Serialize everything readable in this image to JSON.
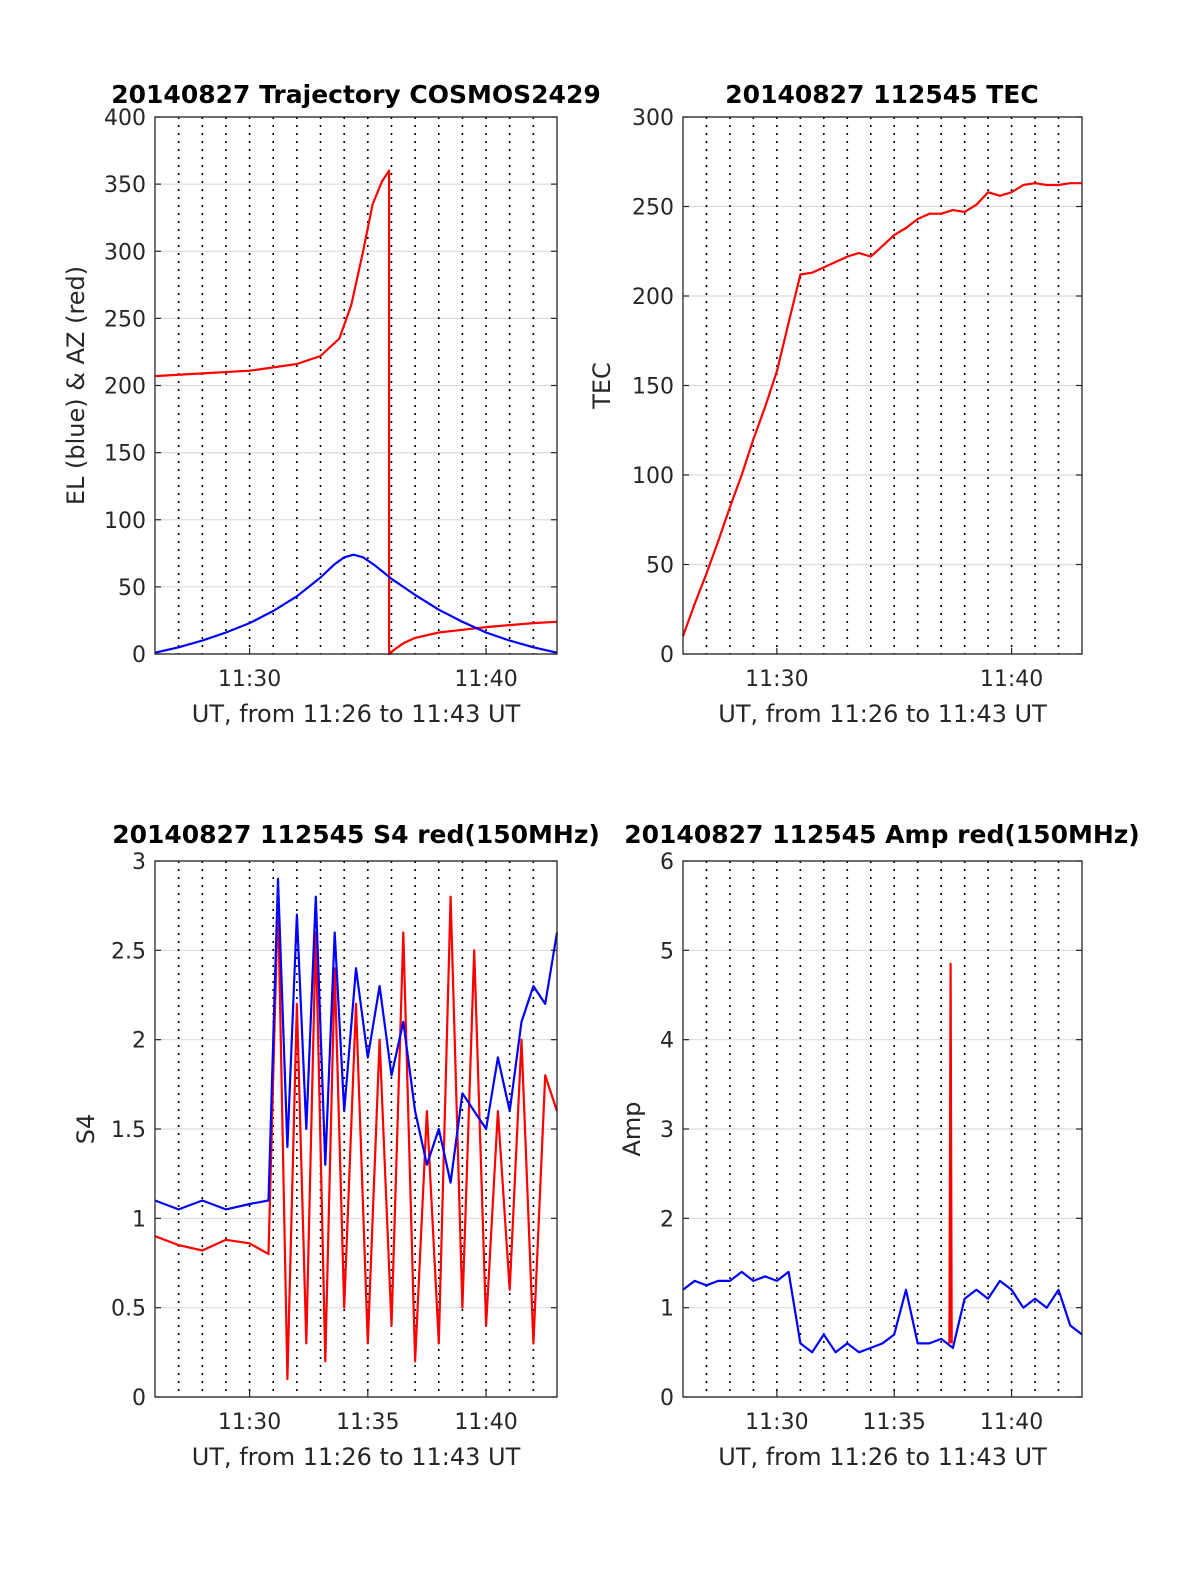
{
  "figure": {
    "colors": {
      "red": "#ff0000",
      "blue": "#0000ff",
      "axis": "#262626",
      "grid": "#dcdcdc",
      "vgrid": "#000000"
    }
  },
  "chart_data": [
    {
      "id": "trajectory",
      "type": "line",
      "title": "20140827 Trajectory COSMOS2429",
      "xlabel": "UT, from 11:26 to 11:43 UT",
      "ylabel": "EL (blue) & AZ (red)",
      "xlim_minutes": [
        686,
        703
      ],
      "x_ticks": [
        {
          "value": 690,
          "label": "11:30"
        },
        {
          "value": 700,
          "label": "11:40"
        }
      ],
      "ylim": [
        0,
        400
      ],
      "y_ticks": [
        {
          "value": 0,
          "label": "0"
        },
        {
          "value": 50,
          "label": "50"
        },
        {
          "value": 100,
          "label": "100"
        },
        {
          "value": 150,
          "label": "150"
        },
        {
          "value": 200,
          "label": "200"
        },
        {
          "value": 250,
          "label": "250"
        },
        {
          "value": 300,
          "label": "300"
        },
        {
          "value": 350,
          "label": "350"
        },
        {
          "value": 400,
          "label": "400"
        }
      ],
      "grid": true,
      "series": [
        {
          "color": "#ff0000",
          "x": [
            686,
            688,
            690,
            692,
            693,
            693.8,
            694.3,
            694.8,
            695.2,
            695.6,
            695.9,
            695.9,
            696.1,
            696.5,
            697,
            698,
            699,
            700,
            701,
            702,
            703
          ],
          "y": [
            207,
            209,
            211,
            216,
            222,
            235,
            260,
            300,
            335,
            352,
            360,
            0,
            3,
            8,
            12,
            16,
            18,
            20,
            21.5,
            23,
            24
          ]
        },
        {
          "color": "#0000ff",
          "x": [
            686,
            687,
            688,
            689,
            690,
            691,
            692,
            693,
            693.6,
            694,
            694.4,
            694.8,
            695.3,
            696,
            697,
            698,
            699,
            700,
            701,
            702,
            703
          ],
          "y": [
            1,
            5,
            10,
            16,
            23,
            32,
            43,
            57,
            67,
            72,
            74,
            72,
            66,
            56,
            44,
            33,
            24,
            16,
            10,
            5,
            1
          ]
        }
      ]
    },
    {
      "id": "tec",
      "type": "line",
      "title": "20140827 112545 TEC",
      "xlabel": "UT, from 11:26 to 11:43 UT",
      "ylabel": "TEC",
      "xlim_minutes": [
        686,
        703
      ],
      "x_ticks": [
        {
          "value": 690,
          "label": "11:30"
        },
        {
          "value": 700,
          "label": "11:40"
        }
      ],
      "ylim": [
        0,
        300
      ],
      "y_ticks": [
        {
          "value": 0,
          "label": "0"
        },
        {
          "value": 50,
          "label": "50"
        },
        {
          "value": 100,
          "label": "100"
        },
        {
          "value": 150,
          "label": "150"
        },
        {
          "value": 200,
          "label": "200"
        },
        {
          "value": 250,
          "label": "250"
        },
        {
          "value": 300,
          "label": "300"
        }
      ],
      "grid": true,
      "series": [
        {
          "color": "#ff0000",
          "x": [
            686,
            686.5,
            687,
            687.5,
            688,
            688.5,
            689,
            689.5,
            690,
            690.5,
            691,
            691.5,
            692,
            692.5,
            693,
            693.5,
            694,
            694.5,
            695,
            695.5,
            696,
            696.5,
            697,
            697.5,
            698,
            698.5,
            699,
            699.5,
            700,
            700.5,
            701,
            701.5,
            702,
            702.5,
            703
          ],
          "y": [
            10,
            28,
            45,
            63,
            82,
            100,
            120,
            138,
            158,
            185,
            212,
            213,
            216,
            219,
            222,
            224,
            222,
            228,
            234,
            238,
            243,
            246,
            246,
            248,
            247,
            251,
            258,
            256,
            258,
            262,
            263,
            262,
            262,
            263,
            263
          ]
        }
      ]
    },
    {
      "id": "s4",
      "type": "line",
      "title": "20140827 112545 S4 red(150MHz)",
      "xlabel": "UT, from 11:26 to 11:43 UT",
      "ylabel": "S4",
      "xlim_minutes": [
        686,
        703
      ],
      "x_ticks": [
        {
          "value": 690,
          "label": "11:30"
        },
        {
          "value": 695,
          "label": "11:35"
        },
        {
          "value": 700,
          "label": "11:40"
        }
      ],
      "ylim": [
        0,
        3
      ],
      "y_ticks": [
        {
          "value": 0,
          "label": "0"
        },
        {
          "value": 0.5,
          "label": "0.5"
        },
        {
          "value": 1,
          "label": "1"
        },
        {
          "value": 1.5,
          "label": "1.5"
        },
        {
          "value": 2,
          "label": "2"
        },
        {
          "value": 2.5,
          "label": "2.5"
        },
        {
          "value": 3,
          "label": "3"
        }
      ],
      "grid": true,
      "series": [
        {
          "color": "#ff0000",
          "x": [
            686,
            687,
            688,
            689,
            690,
            690.8,
            691.2,
            691.6,
            692,
            692.4,
            692.8,
            693.2,
            693.6,
            694,
            694.5,
            695,
            695.5,
            696,
            696.5,
            697,
            697.5,
            698,
            698.5,
            699,
            699.5,
            700,
            700.5,
            701,
            701.5,
            702,
            702.5,
            703
          ],
          "y": [
            0.9,
            0.85,
            0.82,
            0.88,
            0.86,
            0.8,
            2.8,
            0.1,
            2.2,
            0.3,
            2.6,
            0.2,
            2.4,
            0.5,
            2.2,
            0.3,
            2.0,
            0.4,
            2.6,
            0.2,
            1.6,
            0.3,
            2.8,
            0.5,
            2.5,
            0.4,
            1.6,
            0.6,
            2.0,
            0.3,
            1.8,
            1.6
          ]
        },
        {
          "color": "#0000ff",
          "x": [
            686,
            687,
            688,
            689,
            690,
            690.8,
            691.2,
            691.6,
            692,
            692.4,
            692.8,
            693.2,
            693.6,
            694,
            694.5,
            695,
            695.5,
            696,
            696.5,
            697,
            697.5,
            698,
            698.5,
            699,
            699.5,
            700,
            700.5,
            701,
            701.5,
            702,
            702.5,
            703
          ],
          "y": [
            1.1,
            1.05,
            1.1,
            1.05,
            1.08,
            1.1,
            2.9,
            1.4,
            2.7,
            1.5,
            2.8,
            1.3,
            2.6,
            1.6,
            2.4,
            1.9,
            2.3,
            1.8,
            2.1,
            1.6,
            1.3,
            1.5,
            1.2,
            1.7,
            1.6,
            1.5,
            1.9,
            1.6,
            2.1,
            2.3,
            2.2,
            2.6
          ]
        }
      ]
    },
    {
      "id": "amp",
      "type": "line",
      "title": "20140827 112545 Amp red(150MHz)",
      "xlabel": "UT, from 11:26 to 11:43 UT",
      "ylabel": "Amp",
      "xlim_minutes": [
        686,
        703
      ],
      "x_ticks": [
        {
          "value": 690,
          "label": "11:30"
        },
        {
          "value": 695,
          "label": "11:35"
        },
        {
          "value": 700,
          "label": "11:40"
        }
      ],
      "ylim": [
        0,
        6
      ],
      "y_ticks": [
        {
          "value": 0,
          "label": "0"
        },
        {
          "value": 1,
          "label": "1"
        },
        {
          "value": 2,
          "label": "2"
        },
        {
          "value": 3,
          "label": "3"
        },
        {
          "value": 4,
          "label": "4"
        },
        {
          "value": 5,
          "label": "5"
        },
        {
          "value": 6,
          "label": "6"
        }
      ],
      "grid": true,
      "series": [
        {
          "color": "#ff0000",
          "x": [
            697.35,
            697.4,
            697.45
          ],
          "y": [
            0.6,
            4.85,
            0.6
          ]
        },
        {
          "color": "#0000ff",
          "x": [
            686,
            686.5,
            687,
            687.5,
            688,
            688.5,
            689,
            689.5,
            690,
            690.5,
            691,
            691.5,
            692,
            692.5,
            693,
            693.5,
            694,
            694.5,
            695,
            695.5,
            696,
            696.5,
            697,
            697.5,
            698,
            698.5,
            699,
            699.5,
            700,
            700.5,
            701,
            701.5,
            702,
            702.5,
            703
          ],
          "y": [
            1.2,
            1.3,
            1.25,
            1.3,
            1.3,
            1.4,
            1.3,
            1.35,
            1.3,
            1.4,
            0.6,
            0.5,
            0.7,
            0.5,
            0.6,
            0.5,
            0.55,
            0.6,
            0.7,
            1.2,
            0.6,
            0.6,
            0.65,
            0.55,
            1.1,
            1.2,
            1.1,
            1.3,
            1.2,
            1.0,
            1.1,
            1.0,
            1.2,
            0.8,
            0.7
          ]
        }
      ]
    }
  ]
}
